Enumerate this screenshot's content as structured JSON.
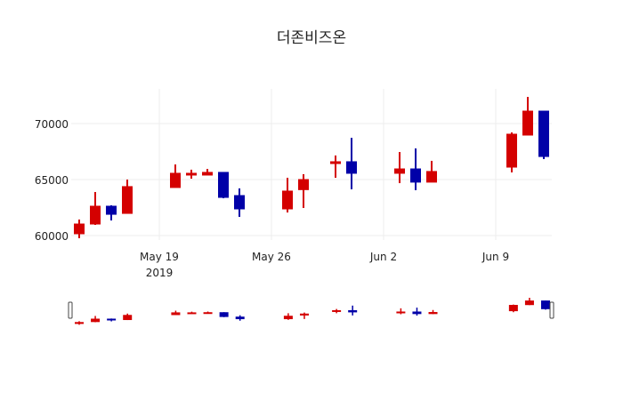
{
  "chart_data": {
    "type": "candlestick",
    "title": "더존비즈온",
    "xlabel": "",
    "ylabel": "",
    "ylim": [
      59500,
      72800
    ],
    "yticks": [
      60000,
      65000,
      70000
    ],
    "xticks": [
      {
        "date": "2019-05-19",
        "label": "May 19",
        "sublabel": "2019"
      },
      {
        "date": "2019-05-26",
        "label": "May 26",
        "sublabel": ""
      },
      {
        "date": "2019-06-02",
        "label": "Jun 2",
        "sublabel": ""
      },
      {
        "date": "2019-06-09",
        "label": "Jun 9",
        "sublabel": ""
      }
    ],
    "increasing_color": "#d40000",
    "decreasing_color": "#0000a8",
    "grid": true,
    "rangeslider": true,
    "series": [
      {
        "date": "2019-05-14",
        "open": 60160,
        "high": 61430,
        "low": 59760,
        "close": 61030
      },
      {
        "date": "2019-05-15",
        "open": 61030,
        "high": 63890,
        "low": 60950,
        "close": 62620
      },
      {
        "date": "2019-05-16",
        "open": 62620,
        "high": 62700,
        "low": 61350,
        "close": 61900
      },
      {
        "date": "2019-05-17",
        "open": 61980,
        "high": 65000,
        "low": 61980,
        "close": 64370
      },
      {
        "date": "2019-05-20",
        "open": 64290,
        "high": 66350,
        "low": 64290,
        "close": 65560
      },
      {
        "date": "2019-05-21",
        "open": 65400,
        "high": 65880,
        "low": 65080,
        "close": 65560
      },
      {
        "date": "2019-05-22",
        "open": 65400,
        "high": 65950,
        "low": 65400,
        "close": 65640
      },
      {
        "date": "2019-05-23",
        "open": 65640,
        "high": 65640,
        "low": 63330,
        "close": 63410
      },
      {
        "date": "2019-05-24",
        "open": 63570,
        "high": 64210,
        "low": 61670,
        "close": 62380
      },
      {
        "date": "2019-05-27",
        "open": 62380,
        "high": 65160,
        "low": 62060,
        "close": 63970
      },
      {
        "date": "2019-05-28",
        "open": 64100,
        "high": 65480,
        "low": 62460,
        "close": 65000
      },
      {
        "date": "2019-05-30",
        "open": 66430,
        "high": 67150,
        "low": 65160,
        "close": 66590
      },
      {
        "date": "2019-05-31",
        "open": 66590,
        "high": 68730,
        "low": 64130,
        "close": 65560
      },
      {
        "date": "2019-06-03",
        "open": 65560,
        "high": 67460,
        "low": 64680,
        "close": 65950
      },
      {
        "date": "2019-06-04",
        "open": 65950,
        "high": 67780,
        "low": 64050,
        "close": 64770
      },
      {
        "date": "2019-06-05",
        "open": 64770,
        "high": 66670,
        "low": 64770,
        "close": 65720
      },
      {
        "date": "2019-06-10",
        "open": 66110,
        "high": 69210,
        "low": 65640,
        "close": 69050
      },
      {
        "date": "2019-06-11",
        "open": 68970,
        "high": 72380,
        "low": 68970,
        "close": 71110
      },
      {
        "date": "2019-06-12",
        "open": 71110,
        "high": 71110,
        "low": 66830,
        "close": 67060
      }
    ]
  }
}
